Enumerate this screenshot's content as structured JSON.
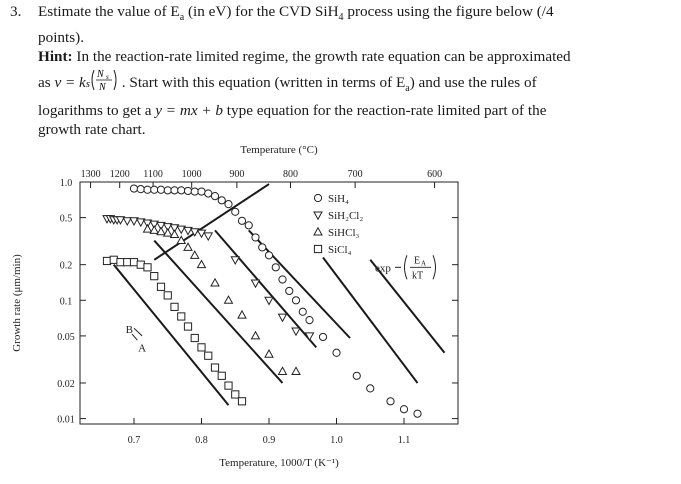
{
  "question": {
    "number": "3.",
    "line1_a": "Estimate the value of E",
    "line1_sub": "a",
    "line1_b": " (in eV) for the CVD SiH",
    "line1_sub2": "4",
    "line1_c": " process using the figure below (/4",
    "line2": "points).",
    "hint_label": "Hint:",
    "hint_text": " In the reaction-rate limited regime, the growth rate equation can be approximated",
    "line4_a": "as ",
    "line4_eq": "v = k",
    "line4_b": ". Start with this equation (written in terms of E",
    "line4_sub": "a",
    "line4_c": ") and use the rules of",
    "line5_a": "logarithms to get a ",
    "line5_eq": "y = mx + b",
    "line5_b": " type equation for the reaction-rate limited part of the",
    "line6": "growth rate chart."
  },
  "chart_data": {
    "type": "scatter",
    "title": "",
    "top_axis_label": "Temperature (°C)",
    "top_ticks": [
      "1300",
      "1200",
      "1100",
      "1000",
      "900",
      "800",
      "700",
      "600"
    ],
    "xlabel": "Temperature, 1000/T (K⁻¹)",
    "ylabel": "Growth rate (μm/min)",
    "x_ticks": [
      "0.7",
      "0.8",
      "0.9",
      "1.0",
      "1.1"
    ],
    "y_ticks": [
      "1.0",
      "0.5",
      "0.2",
      "0.1",
      "0.05",
      "0.02",
      "0.01"
    ],
    "xlim": [
      0.62,
      1.18
    ],
    "ylim": [
      0.009,
      1.0
    ],
    "y_scale": "log",
    "legend": [
      "SiH₄",
      "SiH₂Cl₂",
      "SiHCl₃",
      "SiCl₄"
    ],
    "annotations": {
      "label_A": "A",
      "label_B": "B",
      "exp_text": "exp",
      "exp_num": "E",
      "exp_num_sub": "A",
      "exp_den": "kT"
    },
    "series": [
      {
        "name": "SiH₄",
        "marker": "circle",
        "x": [
          0.7,
          0.71,
          0.72,
          0.73,
          0.74,
          0.75,
          0.76,
          0.77,
          0.78,
          0.79,
          0.8,
          0.81,
          0.82,
          0.83,
          0.84,
          0.85,
          0.86,
          0.87,
          0.88,
          0.89,
          0.9,
          0.91,
          0.92,
          0.93,
          0.94,
          0.95,
          0.96,
          0.98,
          1.0,
          1.03,
          1.05,
          1.08,
          1.1,
          1.12
        ],
        "y": [
          0.88,
          0.87,
          0.86,
          0.86,
          0.86,
          0.85,
          0.85,
          0.85,
          0.84,
          0.83,
          0.83,
          0.8,
          0.76,
          0.7,
          0.65,
          0.56,
          0.47,
          0.43,
          0.34,
          0.28,
          0.24,
          0.19,
          0.15,
          0.12,
          0.1,
          0.08,
          0.068,
          0.049,
          0.036,
          0.023,
          0.018,
          0.014,
          0.012,
          0.011
        ]
      },
      {
        "name": "SiH₂Cl₂",
        "marker": "triangle-down",
        "x": [
          0.66,
          0.665,
          0.67,
          0.675,
          0.68,
          0.69,
          0.7,
          0.71,
          0.72,
          0.73,
          0.74,
          0.75,
          0.76,
          0.77,
          0.78,
          0.79,
          0.8,
          0.81,
          0.85,
          0.88,
          0.9,
          0.92,
          0.94,
          0.96
        ],
        "y": [
          0.49,
          0.49,
          0.48,
          0.48,
          0.48,
          0.47,
          0.47,
          0.46,
          0.45,
          0.44,
          0.43,
          0.42,
          0.41,
          0.4,
          0.39,
          0.38,
          0.37,
          0.35,
          0.22,
          0.14,
          0.1,
          0.072,
          0.055,
          0.05
        ]
      },
      {
        "name": "SiHCl₃",
        "marker": "triangle-up",
        "x": [
          0.72,
          0.73,
          0.74,
          0.75,
          0.76,
          0.77,
          0.78,
          0.79,
          0.8,
          0.82,
          0.84,
          0.86,
          0.88,
          0.9,
          0.92,
          0.94
        ],
        "y": [
          0.4,
          0.39,
          0.38,
          0.37,
          0.36,
          0.32,
          0.28,
          0.24,
          0.2,
          0.14,
          0.1,
          0.075,
          0.05,
          0.035,
          0.025,
          0.025
        ]
      },
      {
        "name": "SiCl₄",
        "marker": "square",
        "x": [
          0.66,
          0.67,
          0.68,
          0.69,
          0.7,
          0.71,
          0.72,
          0.73,
          0.74,
          0.75,
          0.76,
          0.77,
          0.78,
          0.79,
          0.8,
          0.81,
          0.82,
          0.83,
          0.84,
          0.85,
          0.86
        ],
        "y": [
          0.215,
          0.22,
          0.21,
          0.21,
          0.21,
          0.2,
          0.19,
          0.16,
          0.13,
          0.11,
          0.088,
          0.073,
          0.06,
          0.048,
          0.04,
          0.034,
          0.027,
          0.023,
          0.019,
          0.016,
          0.014
        ]
      }
    ],
    "lines": [
      {
        "x": [
          0.67,
          0.84
        ],
        "y": [
          0.2,
          0.013
        ]
      },
      {
        "x": [
          0.73,
          0.92
        ],
        "y": [
          0.32,
          0.02
        ]
      },
      {
        "x": [
          0.82,
          0.97
        ],
        "y": [
          0.39,
          0.04
        ]
      },
      {
        "x": [
          0.87,
          1.02
        ],
        "y": [
          0.39,
          0.048
        ]
      },
      {
        "x": [
          0.98,
          1.12
        ],
        "y": [
          0.23,
          0.02
        ]
      },
      {
        "x": [
          1.05,
          1.16
        ],
        "y": [
          0.22,
          0.036
        ]
      },
      {
        "x": [
          0.73,
          0.9
        ],
        "y": [
          0.22,
          0.96
        ]
      }
    ]
  }
}
